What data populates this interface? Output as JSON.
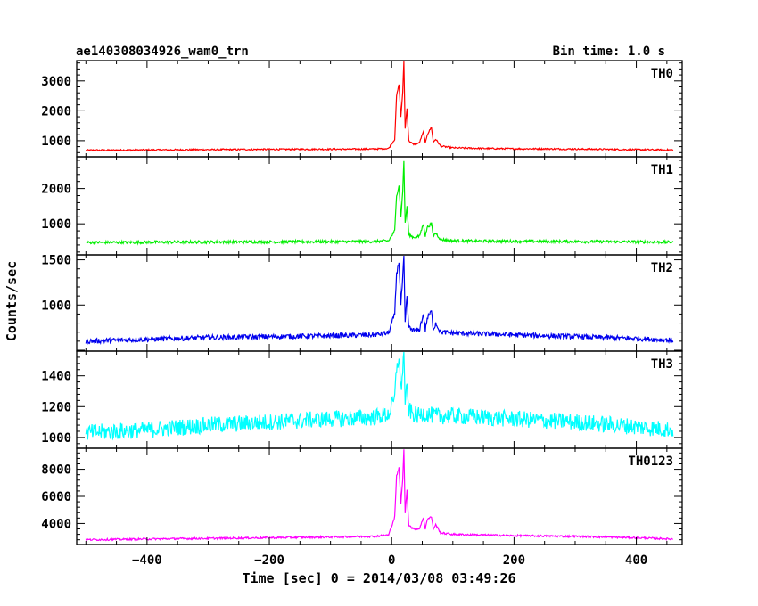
{
  "chart_data": {
    "type": "line",
    "title": "ae140308034926_wam0_trn",
    "bin_time": "Bin time: 1.0 s",
    "xlabel": "Time [sec] 0 = 2014/03/08 03:49:26",
    "ylabel": "Counts/sec",
    "xlim": [
      -515,
      475
    ],
    "xticks": [
      -400,
      -200,
      0,
      200,
      400
    ],
    "grid": false,
    "panels": [
      {
        "name": "TH0",
        "color": "#ff0000",
        "ylim": [
          460,
          3680
        ],
        "yticks": [
          1000,
          2000,
          3000
        ],
        "x": [
          -500,
          -400,
          -300,
          -200,
          -100,
          -30,
          -5,
          5,
          8,
          12,
          15,
          18,
          20,
          22,
          25,
          28,
          35,
          45,
          52,
          55,
          58,
          65,
          68,
          72,
          80,
          100,
          150,
          200,
          300,
          400,
          460
        ],
        "values": [
          680,
          690,
          700,
          710,
          715,
          720,
          740,
          1050,
          2500,
          2900,
          1800,
          2600,
          3680,
          1400,
          2100,
          1000,
          880,
          920,
          1300,
          900,
          1200,
          1450,
          950,
          1050,
          820,
          760,
          740,
          730,
          720,
          700,
          690
        ]
      },
      {
        "name": "TH1",
        "color": "#00ee00",
        "ylim": [
          120,
          2900
        ],
        "yticks": [
          1000,
          2000
        ],
        "x": [
          -500,
          -400,
          -300,
          -200,
          -100,
          -30,
          -5,
          5,
          8,
          12,
          15,
          18,
          20,
          22,
          25,
          28,
          35,
          45,
          52,
          55,
          58,
          65,
          68,
          72,
          80,
          100,
          150,
          200,
          300,
          400,
          460
        ],
        "values": [
          470,
          480,
          485,
          490,
          495,
          500,
          520,
          800,
          1800,
          2100,
          1200,
          1900,
          2800,
          1000,
          1500,
          700,
          620,
          640,
          1000,
          640,
          900,
          1000,
          660,
          740,
          560,
          520,
          510,
          505,
          500,
          490,
          480
        ],
        "noise": 40
      },
      {
        "name": "TH2",
        "color": "#0000ee",
        "ylim": [
          490,
          1555
        ],
        "yticks": [
          1000,
          1500
        ],
        "x": [
          -500,
          -400,
          -300,
          -200,
          -100,
          -30,
          -5,
          5,
          8,
          12,
          15,
          18,
          20,
          22,
          25,
          28,
          35,
          45,
          52,
          55,
          58,
          65,
          68,
          72,
          80,
          100,
          150,
          200,
          300,
          400,
          460
        ],
        "values": [
          600,
          620,
          640,
          650,
          660,
          670,
          690,
          900,
          1350,
          1480,
          1000,
          1300,
          1530,
          800,
          1100,
          750,
          720,
          720,
          900,
          720,
          850,
          930,
          730,
          800,
          700,
          690,
          680,
          670,
          650,
          630,
          610
        ],
        "noise": 28
      },
      {
        "name": "TH3",
        "color": "#00ffff",
        "ylim": [
          930,
          1560
        ],
        "yticks": [
          1000,
          1200,
          1400
        ],
        "x": [
          -500,
          -400,
          -300,
          -200,
          -100,
          -30,
          -5,
          5,
          8,
          12,
          15,
          18,
          20,
          22,
          25,
          28,
          35,
          45,
          52,
          55,
          60,
          70,
          80,
          100,
          150,
          200,
          300,
          400,
          460
        ],
        "values": [
          1030,
          1050,
          1080,
          1100,
          1120,
          1130,
          1150,
          1250,
          1450,
          1530,
          1300,
          1450,
          1540,
          1250,
          1300,
          1180,
          1150,
          1140,
          1160,
          1150,
          1150,
          1140,
          1140,
          1140,
          1130,
          1120,
          1100,
          1070,
          1050
        ],
        "noise": 55
      },
      {
        "name": "TH0123",
        "color": "#ff00ff",
        "ylim": [
          2450,
          9550
        ],
        "yticks": [
          4000,
          6000,
          8000
        ],
        "x": [
          -500,
          -400,
          -300,
          -200,
          -100,
          -30,
          -5,
          5,
          8,
          12,
          15,
          18,
          20,
          22,
          25,
          28,
          35,
          45,
          52,
          55,
          58,
          65,
          68,
          72,
          80,
          100,
          150,
          200,
          300,
          400,
          460
        ],
        "values": [
          2800,
          2850,
          2900,
          2950,
          3000,
          3050,
          3150,
          4500,
          7500,
          8100,
          5500,
          7200,
          9500,
          4800,
          6500,
          3900,
          3600,
          3600,
          4400,
          3600,
          4300,
          4500,
          3600,
          3900,
          3300,
          3200,
          3150,
          3100,
          3050,
          2950,
          2850
        ],
        "noise": 70
      }
    ]
  }
}
